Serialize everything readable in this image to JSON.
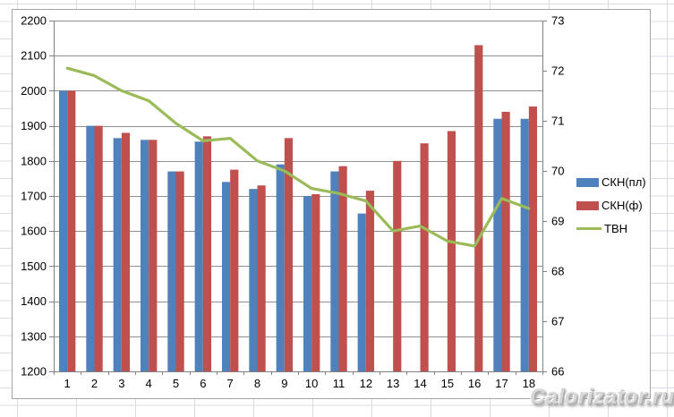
{
  "watermark": {
    "text": "Calorizator.ru"
  },
  "chart_data": {
    "type": "combo",
    "title": "",
    "xlabel": "",
    "ylabel_left": "",
    "ylabel_right": "",
    "grid": true,
    "legend_position": "right",
    "categories": [
      "1",
      "2",
      "3",
      "4",
      "5",
      "6",
      "7",
      "8",
      "9",
      "10",
      "11",
      "12",
      "13",
      "14",
      "15",
      "16",
      "17",
      "18"
    ],
    "series": [
      {
        "name": "СКН(пл)",
        "type": "bar",
        "axis": "left",
        "color": "#4F81BD",
        "values": [
          2000,
          1900,
          1865,
          1860,
          1770,
          1855,
          1740,
          1720,
          1790,
          1700,
          1770,
          1650,
          null,
          null,
          null,
          null,
          1920,
          1920
        ]
      },
      {
        "name": "СКН(ф)",
        "type": "bar",
        "axis": "left",
        "color": "#C0504D",
        "values": [
          2000,
          1900,
          1880,
          1860,
          1770,
          1870,
          1775,
          1730,
          1865,
          1705,
          1785,
          1715,
          1800,
          1850,
          1885,
          2130,
          1940,
          1955
        ]
      },
      {
        "name": "ТВН",
        "type": "line",
        "axis": "right",
        "color": "#9BBB59",
        "values": [
          72.05,
          71.9,
          71.6,
          71.4,
          70.95,
          70.6,
          70.65,
          70.2,
          70.0,
          69.65,
          69.55,
          69.4,
          68.8,
          68.9,
          68.6,
          68.5,
          69.45,
          69.25
        ]
      }
    ],
    "left_axis": {
      "min": 1200,
      "max": 2200,
      "step": 100,
      "ticks": [
        1200,
        1300,
        1400,
        1500,
        1600,
        1700,
        1800,
        1900,
        2000,
        2100,
        2200
      ]
    },
    "right_axis": {
      "min": 66,
      "max": 73,
      "step": 1,
      "ticks": [
        66,
        67,
        68,
        69,
        70,
        71,
        72,
        73
      ]
    },
    "colors": {
      "gridline": "#909090",
      "axis": "#808080",
      "label": "#000000",
      "chart_border": "#a6a6a6",
      "excel_grid": "#d9dde3"
    }
  }
}
